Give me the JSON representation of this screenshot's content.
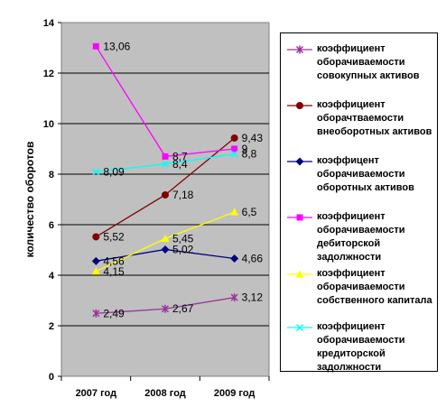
{
  "chart_data": {
    "type": "line",
    "categories": [
      "2007 год",
      "2008 год",
      "2009 год"
    ],
    "ylabel": "количество оборотов",
    "ylim": [
      0,
      14
    ],
    "yticks": [
      "0",
      "2",
      "4",
      "6",
      "8",
      "10",
      "12",
      "14"
    ],
    "grid": true,
    "legend_position": "right",
    "series": [
      {
        "name": "коэффициент оборачиваемости совокупных активов",
        "values": [
          2.49,
          2.67,
          3.12
        ],
        "labels": [
          "2,49",
          "2,67",
          "3,12"
        ],
        "color": "#993399",
        "marker": "asterisk"
      },
      {
        "name": "коэффициент оборачтваемости внеоборотных активов",
        "values": [
          5.52,
          7.18,
          9.43
        ],
        "labels": [
          "5,52",
          "7,18",
          "9,43"
        ],
        "color": "#800000",
        "marker": "circle"
      },
      {
        "name": "коэффицент оборачиваемости оборотных активов",
        "values": [
          4.56,
          5.02,
          4.66
        ],
        "labels": [
          "4,56",
          "5,02",
          "4,66"
        ],
        "color": "#000080",
        "marker": "diamond"
      },
      {
        "name": "коэффициент оборачиваемости дебиторской задолжности",
        "values": [
          13.06,
          8.7,
          9.0
        ],
        "labels": [
          "13,06",
          "8,7",
          "9"
        ],
        "color": "#ff00ff",
        "marker": "square"
      },
      {
        "name": "коэффициент оборачиваемости собственного капитала",
        "values": [
          4.15,
          5.45,
          6.5
        ],
        "labels": [
          "4,15",
          "5,45",
          "6,5"
        ],
        "color": "#ffff00",
        "marker": "triangle"
      },
      {
        "name": "коэффициент оборачиваемости кредиторской задолжности",
        "values": [
          8.09,
          8.4,
          8.8
        ],
        "labels": [
          "8,09",
          "8,4",
          "8,8"
        ],
        "color": "#00ffff",
        "marker": "x"
      }
    ]
  }
}
